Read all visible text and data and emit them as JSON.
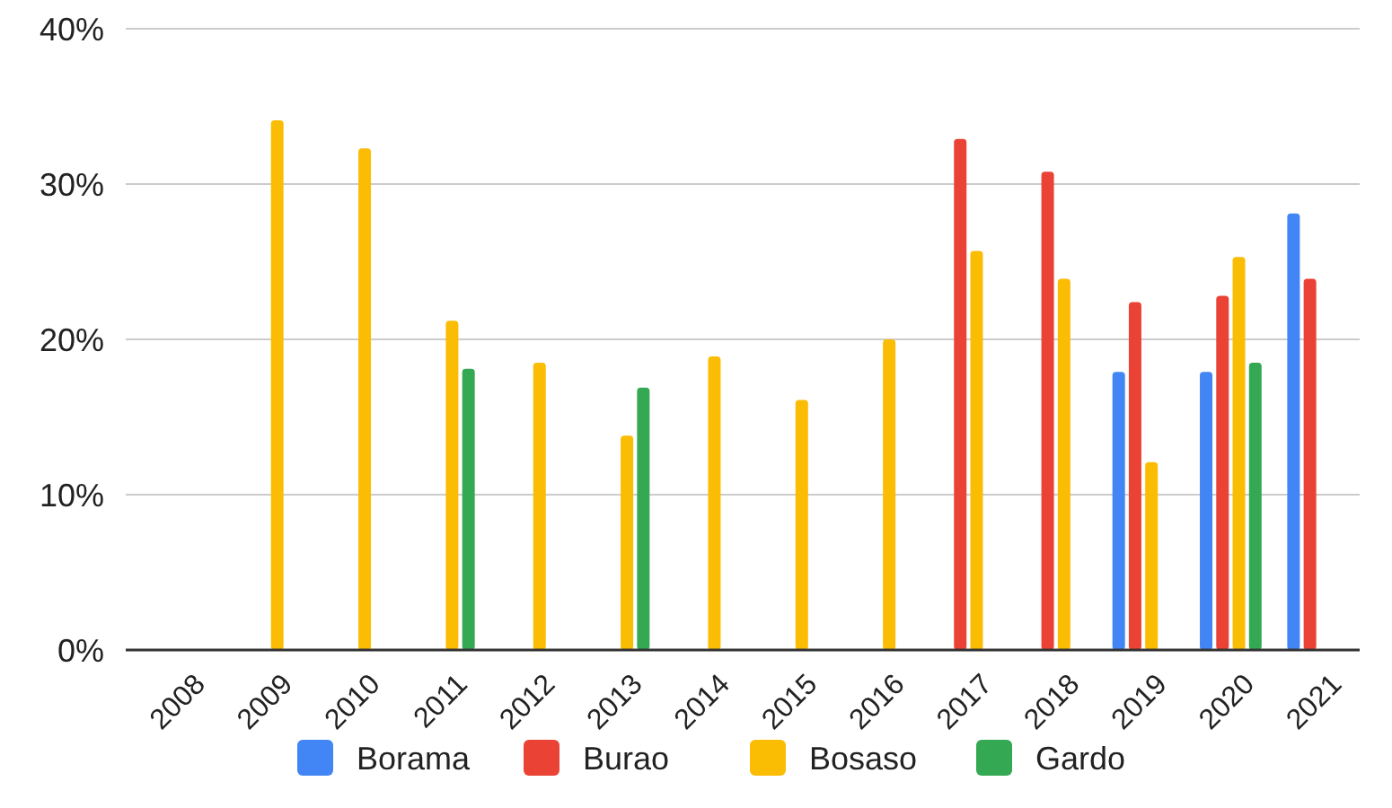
{
  "chart_data": {
    "type": "bar",
    "categories": [
      "2008",
      "2009",
      "2010",
      "2011",
      "2012",
      "2013",
      "2014",
      "2015",
      "2016",
      "2017",
      "2018",
      "2019",
      "2020",
      "2021"
    ],
    "series": [
      {
        "name": "Borama",
        "color": "#4285f4",
        "values": [
          null,
          null,
          null,
          null,
          null,
          null,
          null,
          null,
          null,
          null,
          null,
          17.9,
          17.9,
          28.1
        ]
      },
      {
        "name": "Burao",
        "color": "#ea4335",
        "values": [
          null,
          null,
          null,
          null,
          null,
          null,
          null,
          null,
          null,
          32.9,
          30.8,
          22.4,
          22.8,
          23.9
        ]
      },
      {
        "name": "Bosaso",
        "color": "#fbbc04",
        "values": [
          null,
          34.1,
          32.3,
          21.2,
          18.5,
          13.8,
          18.9,
          16.1,
          20.0,
          25.7,
          23.9,
          12.1,
          25.3,
          null
        ]
      },
      {
        "name": "Gardo",
        "color": "#34a853",
        "values": [
          null,
          null,
          null,
          18.1,
          null,
          16.9,
          null,
          null,
          null,
          null,
          null,
          null,
          18.5,
          null
        ]
      }
    ],
    "ylim": [
      0,
      40
    ],
    "yticks": [
      {
        "value": 0,
        "label": "0%"
      },
      {
        "value": 10,
        "label": "10%"
      },
      {
        "value": 20,
        "label": "20%"
      },
      {
        "value": 30,
        "label": "30%"
      },
      {
        "value": 40,
        "label": "40%"
      }
    ],
    "grid": "y",
    "legend": "bottom"
  }
}
